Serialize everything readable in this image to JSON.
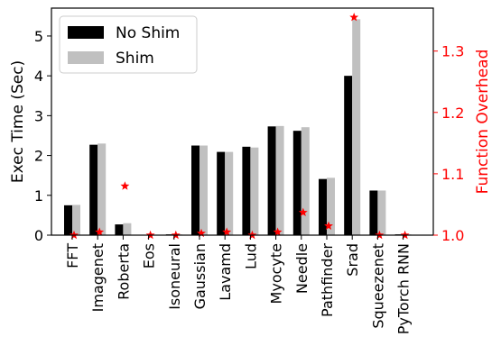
{
  "chart_data": {
    "type": "bar",
    "categories": [
      "FFT",
      "Imagenet",
      "Roberta",
      "Eos",
      "Isoneural",
      "Gaussian",
      "Lavamd",
      "Lud",
      "Myocyte",
      "Needle",
      "Pathfinder",
      "Srad",
      "Squeezenet",
      "PyTorch RNN"
    ],
    "series": [
      {
        "name": "No Shim",
        "color": "#000000",
        "values": [
          0.75,
          2.27,
          0.27,
          0.01,
          0.02,
          2.25,
          2.09,
          2.22,
          2.73,
          2.62,
          1.41,
          4.0,
          1.12,
          0.02
        ]
      },
      {
        "name": "Shim",
        "color": "#c0c0c0",
        "values": [
          0.76,
          2.3,
          0.3,
          0.01,
          0.02,
          2.25,
          2.09,
          2.2,
          2.74,
          2.71,
          1.44,
          5.42,
          1.12,
          0.02
        ]
      }
    ],
    "overhead": {
      "color": "#ff0000",
      "marker": "star",
      "values": [
        1.0,
        1.005,
        1.08,
        1.0,
        1.0,
        1.003,
        1.005,
        1.0,
        1.005,
        1.037,
        1.015,
        1.355,
        1.0,
        1.0
      ]
    },
    "ylabel": "Exec Time (Sec)",
    "ylim": [
      0,
      5.7
    ],
    "yticks": [
      0,
      1,
      2,
      3,
      4,
      5
    ],
    "ylabel_right": "Function Overhead",
    "ylim_right": [
      1.0,
      1.37
    ],
    "yticks_right": [
      "1.0",
      "1.1",
      "1.2",
      "1.3"
    ],
    "yticks_right_values": [
      1.0,
      1.1,
      1.2,
      1.3
    ],
    "legend_position": "upper-left",
    "grid": false
  }
}
